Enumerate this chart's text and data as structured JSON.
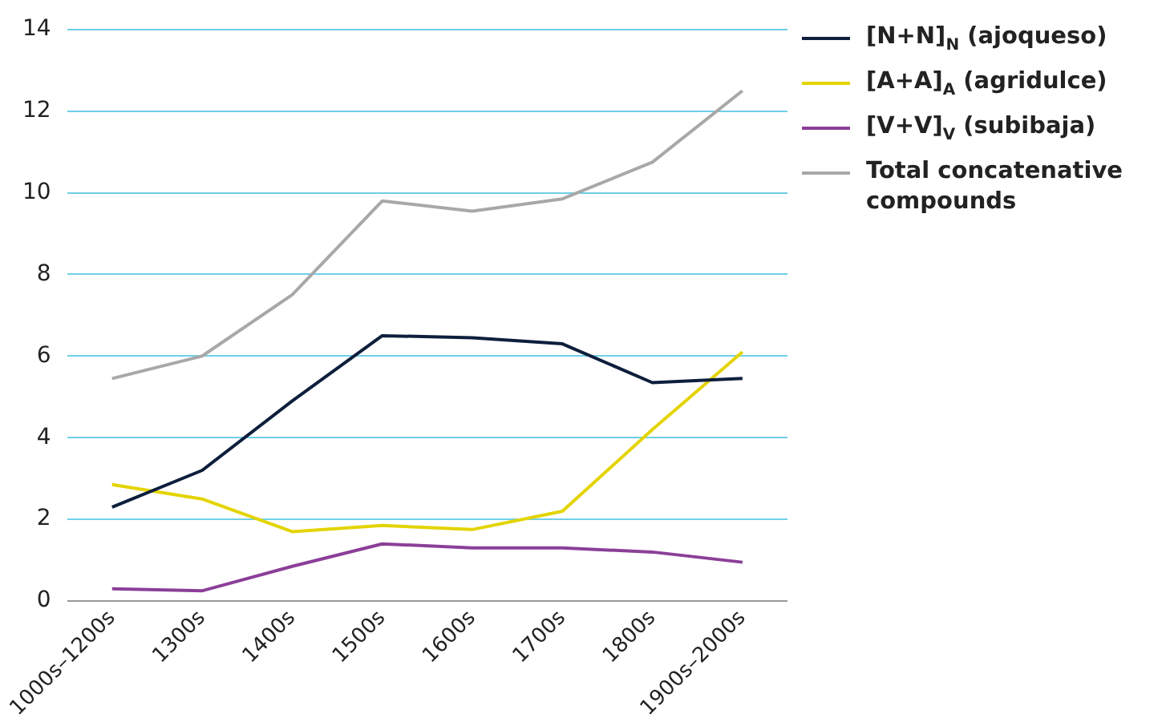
{
  "chart_data": {
    "type": "line",
    "categories": [
      "1000s–1200s",
      "1300s",
      "1400s",
      "1500s",
      "1600s",
      "1700s",
      "1800s",
      "1900s–2000s"
    ],
    "series": [
      {
        "name": "[N+N]$_{N}$ (ajoqueso)",
        "color": "#0d1f3c",
        "values": [
          2.3,
          3.2,
          4.9,
          6.5,
          6.45,
          6.3,
          5.35,
          5.45
        ]
      },
      {
        "name": "[A+A]$_{A}$ (agridulce)",
        "color": "#e3d400",
        "values": [
          2.85,
          2.5,
          1.7,
          1.85,
          1.75,
          2.2,
          4.2,
          6.1
        ]
      },
      {
        "name": "[V+V]$_{V}$ (subibaja)",
        "color": "#8b3f98",
        "values": [
          0.3,
          0.25,
          0.85,
          1.4,
          1.3,
          1.3,
          1.2,
          0.95
        ]
      },
      {
        "name": "Total concatenative compounds",
        "color": "#a8a8a8",
        "values": [
          5.45,
          6.0,
          7.5,
          9.8,
          9.55,
          9.85,
          10.75,
          12.5
        ]
      }
    ],
    "ylim": [
      0,
      14
    ],
    "yticks": [
      0,
      2,
      4,
      6,
      8,
      10,
      12,
      14
    ],
    "grid": "y",
    "legend": "right",
    "marker": "none",
    "line_style": "solid"
  }
}
